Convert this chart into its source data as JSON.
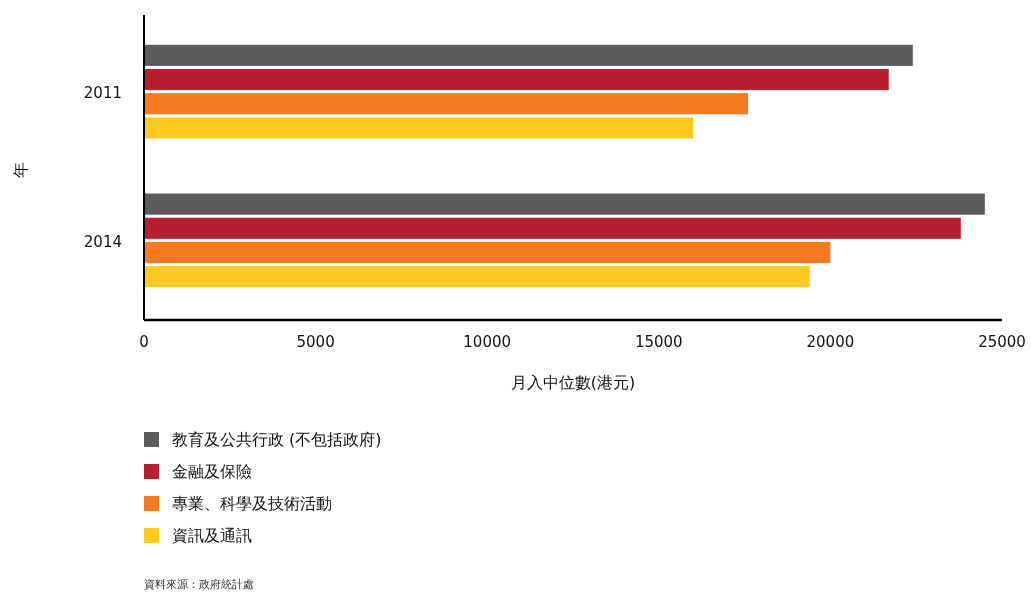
{
  "chart_data": {
    "type": "bar",
    "orientation": "horizontal",
    "categories": [
      "2011",
      "2014"
    ],
    "series": [
      {
        "name": "教育及公共行政 (不包括政府)",
        "color": "#5b5b5d",
        "values": [
          22400,
          24500
        ]
      },
      {
        "name": "金融及保險",
        "color": "#b72030",
        "values": [
          21700,
          23800
        ]
      },
      {
        "name": "專業、科學及技術活動",
        "color": "#f57b20",
        "values": [
          17600,
          20000
        ]
      },
      {
        "name": "資訊及通訊",
        "color": "#ffca1f",
        "values": [
          16000,
          19400
        ]
      }
    ],
    "xlim": [
      0,
      25000
    ],
    "xticks": [
      0,
      5000,
      10000,
      15000,
      20000,
      25000
    ],
    "xlabel": "月入中位數(港元)",
    "ylabel": "年",
    "legend": "bottom",
    "grid": false,
    "annotations": [
      "資料來源：政府統計處"
    ]
  }
}
